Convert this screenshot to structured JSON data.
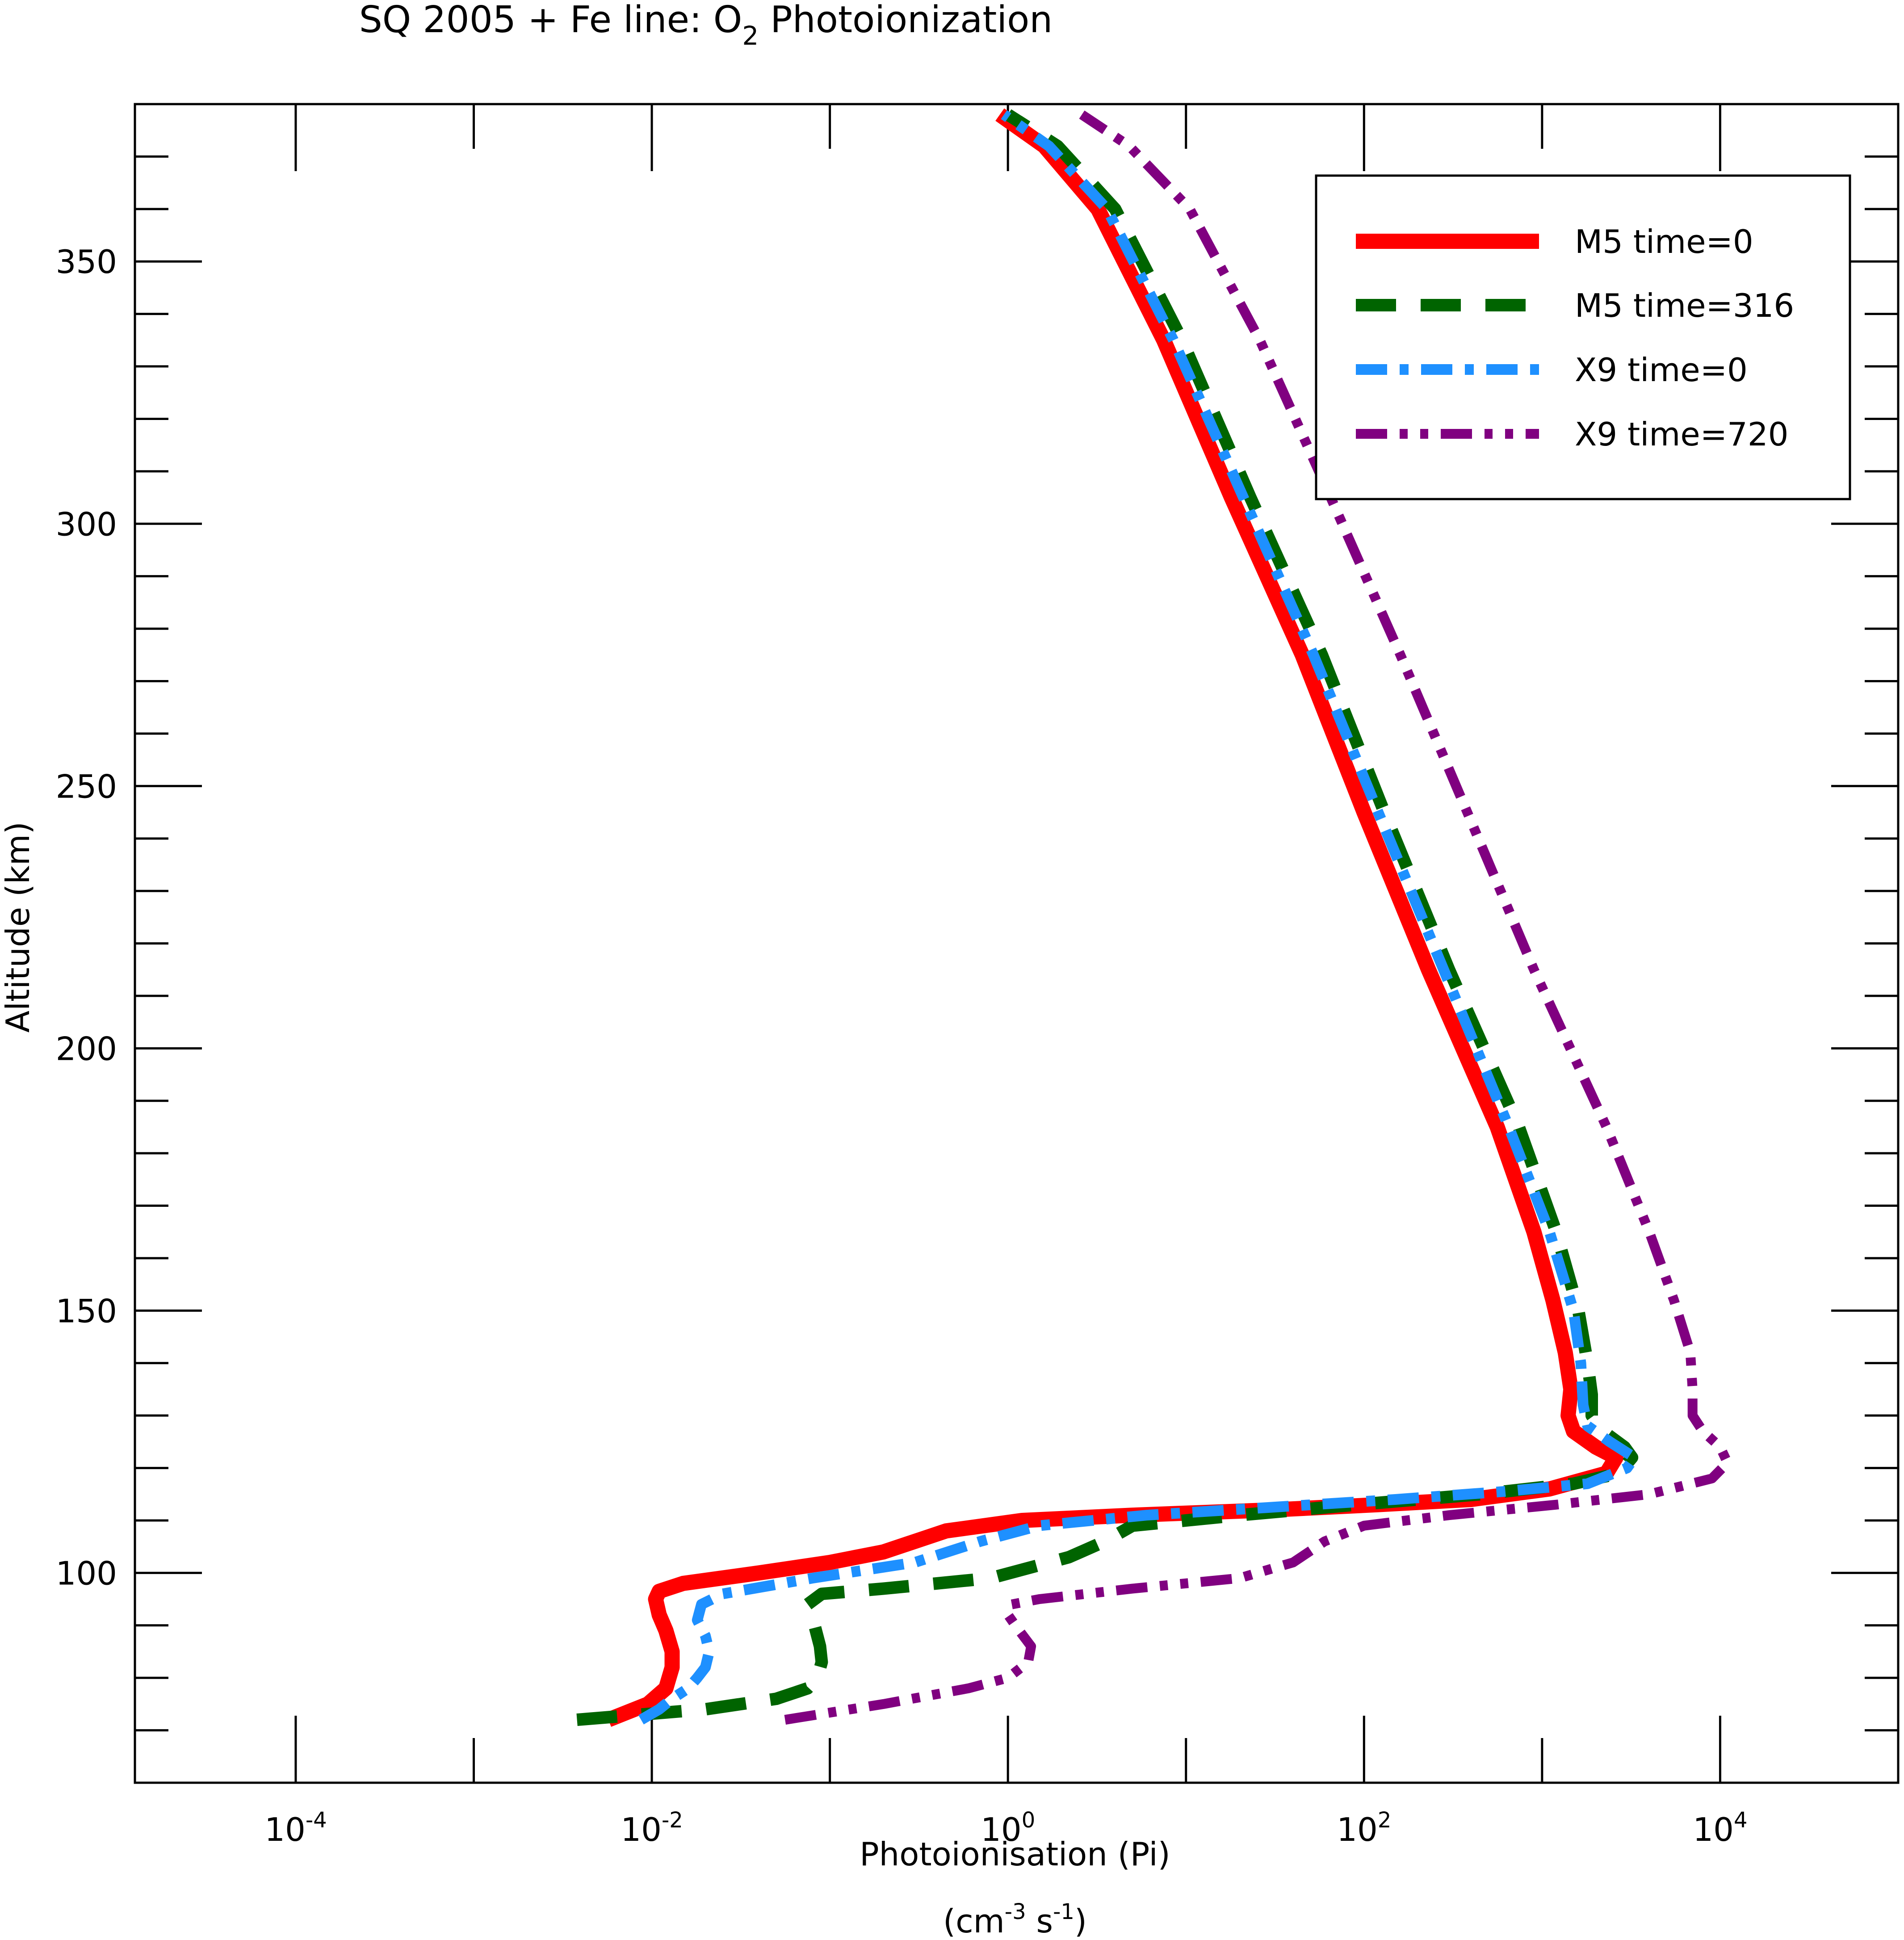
{
  "chart_data": {
    "type": "line",
    "title": {
      "main": "SQ 2005 + Fe line: O",
      "sub": "2",
      "rest": " Photoionization"
    },
    "xlabel": "Photoionisation (Pi)",
    "xunit": {
      "open": "(cm",
      "sup1": "-3",
      "mid": " s",
      "sup2": "-1",
      "close": ")"
    },
    "ylabel": "Altitude (km)",
    "x_scale": "log",
    "xlim": [
      1.25e-05,
      100000
    ],
    "ylim": [
      60,
      380
    ],
    "grid": false,
    "legend_position": "top-right",
    "x_ticks": [
      {
        "value": 0.0001,
        "base": "10",
        "exp": "-4"
      },
      {
        "value": 0.01,
        "base": "10",
        "exp": "-2"
      },
      {
        "value": 1,
        "base": "10",
        "exp": "0"
      },
      {
        "value": 100,
        "base": "10",
        "exp": "2"
      },
      {
        "value": 10000,
        "base": "10",
        "exp": "4"
      }
    ],
    "y_ticks": [
      100,
      150,
      200,
      250,
      300,
      350
    ],
    "series": [
      {
        "name": "M5 time=0",
        "color": "#ff0000",
        "dash": "solid",
        "points": [
          [
            0.0057,
            72
          ],
          [
            0.0095,
            75
          ],
          [
            0.012,
            78
          ],
          [
            0.013,
            82
          ],
          [
            0.013,
            85
          ],
          [
            0.012,
            89
          ],
          [
            0.011,
            92
          ],
          [
            0.0105,
            95
          ],
          [
            0.011,
            96.5
          ],
          [
            0.015,
            98
          ],
          [
            0.04,
            100
          ],
          [
            0.1,
            102
          ],
          [
            0.2,
            104
          ],
          [
            0.45,
            108
          ],
          [
            1.2,
            110
          ],
          [
            5,
            111
          ],
          [
            30,
            112
          ],
          [
            120,
            113
          ],
          [
            400,
            114
          ],
          [
            1100,
            116
          ],
          [
            2300,
            119
          ],
          [
            2600,
            122
          ],
          [
            2000,
            124
          ],
          [
            1500,
            127
          ],
          [
            1400,
            130
          ],
          [
            1450,
            135
          ],
          [
            1350,
            142
          ],
          [
            1150,
            152
          ],
          [
            900,
            165
          ],
          [
            560,
            185
          ],
          [
            230,
            215
          ],
          [
            100,
            245
          ],
          [
            45,
            275
          ],
          [
            18,
            305
          ],
          [
            7.5,
            335
          ],
          [
            3.2,
            360
          ],
          [
            1.6,
            372
          ],
          [
            0.9,
            378
          ]
        ]
      },
      {
        "name": "M5 time=316",
        "color": "#006400",
        "dash": "dashed",
        "points": [
          [
            0.0038,
            72
          ],
          [
            0.02,
            74
          ],
          [
            0.05,
            76
          ],
          [
            0.075,
            78
          ],
          [
            0.085,
            80
          ],
          [
            0.09,
            83
          ],
          [
            0.088,
            86
          ],
          [
            0.082,
            90
          ],
          [
            0.075,
            94
          ],
          [
            0.09,
            96
          ],
          [
            0.2,
            97
          ],
          [
            0.8,
            99
          ],
          [
            2.2,
            103
          ],
          [
            3.5,
            106
          ],
          [
            5,
            109
          ],
          [
            20,
            111
          ],
          [
            90,
            113
          ],
          [
            450,
            115
          ],
          [
            1500,
            117
          ],
          [
            2700,
            119
          ],
          [
            3200,
            122
          ],
          [
            2900,
            124
          ],
          [
            2200,
            127
          ],
          [
            1900,
            130
          ],
          [
            1900,
            134
          ],
          [
            1800,
            140
          ],
          [
            1600,
            150
          ],
          [
            1200,
            165
          ],
          [
            740,
            185
          ],
          [
            300,
            215
          ],
          [
            130,
            245
          ],
          [
            58,
            275
          ],
          [
            23,
            305
          ],
          [
            9.5,
            335
          ],
          [
            4,
            360
          ],
          [
            1.9,
            372
          ],
          [
            1.0,
            378
          ]
        ]
      },
      {
        "name": "X9 time=0",
        "color": "#1e90ff",
        "dash": "dashdot",
        "points": [
          [
            0.0087,
            72
          ],
          [
            0.011,
            74
          ],
          [
            0.013,
            76
          ],
          [
            0.016,
            78
          ],
          [
            0.018,
            80
          ],
          [
            0.02,
            82
          ],
          [
            0.021,
            85
          ],
          [
            0.02,
            88
          ],
          [
            0.018,
            91
          ],
          [
            0.019,
            94
          ],
          [
            0.025,
            96
          ],
          [
            0.08,
            99
          ],
          [
            0.3,
            102
          ],
          [
            0.7,
            106
          ],
          [
            1.5,
            109
          ],
          [
            6,
            111
          ],
          [
            30,
            112.5
          ],
          [
            150,
            114
          ],
          [
            600,
            115.5
          ],
          [
            1800,
            117
          ],
          [
            3000,
            120
          ],
          [
            3300,
            122
          ],
          [
            2400,
            125
          ],
          [
            1800,
            128
          ],
          [
            1700,
            132
          ],
          [
            1650,
            140
          ],
          [
            1500,
            150
          ],
          [
            1100,
            165
          ],
          [
            650,
            185
          ],
          [
            280,
            215
          ],
          [
            120,
            245
          ],
          [
            52,
            275
          ],
          [
            21,
            305
          ],
          [
            8.5,
            335
          ],
          [
            3.6,
            360
          ],
          [
            1.7,
            372
          ],
          [
            0.95,
            378
          ]
        ]
      },
      {
        "name": "X9 time=720",
        "color": "#800080",
        "dash": "dashdotdot",
        "points": [
          [
            0.056,
            72
          ],
          [
            0.2,
            75
          ],
          [
            0.6,
            78
          ],
          [
            1.0,
            80
          ],
          [
            1.3,
            83
          ],
          [
            1.35,
            86
          ],
          [
            1.1,
            90
          ],
          [
            1.0,
            92
          ],
          [
            1.05,
            94
          ],
          [
            1.5,
            95
          ],
          [
            5,
            97
          ],
          [
            20,
            99
          ],
          [
            40,
            102
          ],
          [
            60,
            106
          ],
          [
            100,
            109
          ],
          [
            300,
            111
          ],
          [
            1200,
            113
          ],
          [
            4000,
            115
          ],
          [
            9000,
            118
          ],
          [
            11000,
            121
          ],
          [
            10000,
            124
          ],
          [
            8000,
            127
          ],
          [
            7000,
            130
          ],
          [
            7000,
            135
          ],
          [
            6800,
            142
          ],
          [
            5500,
            152
          ],
          [
            4000,
            165
          ],
          [
            2300,
            185
          ],
          [
            900,
            215
          ],
          [
            380,
            245
          ],
          [
            160,
            275
          ],
          [
            65,
            305
          ],
          [
            26,
            335
          ],
          [
            10.5,
            360
          ],
          [
            4.8,
            372
          ],
          [
            2.6,
            378
          ]
        ]
      }
    ]
  }
}
